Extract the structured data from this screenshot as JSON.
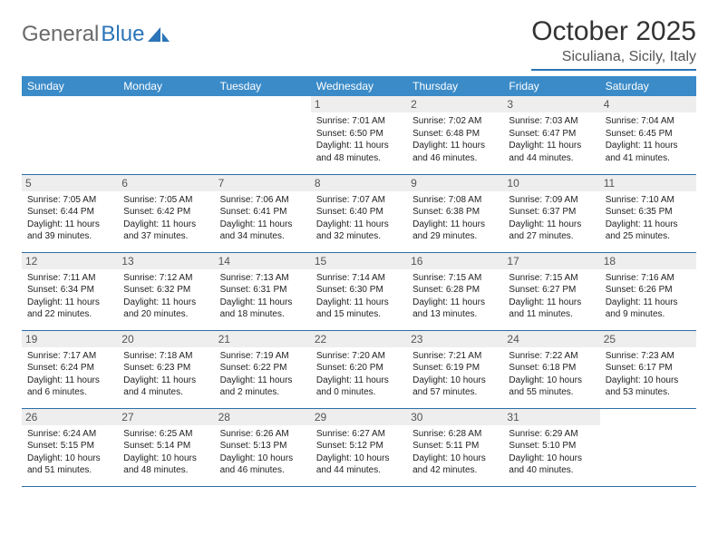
{
  "logo": {
    "part1": "General",
    "part2": "Blue"
  },
  "title": "October 2025",
  "location": "Siculiana, Sicily, Italy",
  "colors": {
    "header_bg": "#3b8bc8",
    "header_text": "#ffffff",
    "daynum_bg": "#eeeeee",
    "border": "#2b6fa8",
    "logo_gray": "#6a6a6a",
    "logo_blue": "#2b74b8"
  },
  "fonts": {
    "title_size": 30,
    "location_size": 16,
    "th_size": 12,
    "daynum_size": 12,
    "cell_size": 10
  },
  "days_of_week": [
    "Sunday",
    "Monday",
    "Tuesday",
    "Wednesday",
    "Thursday",
    "Friday",
    "Saturday"
  ],
  "weeks": [
    [
      {
        "n": "",
        "sr": "",
        "ss": "",
        "dl": ""
      },
      {
        "n": "",
        "sr": "",
        "ss": "",
        "dl": ""
      },
      {
        "n": "",
        "sr": "",
        "ss": "",
        "dl": ""
      },
      {
        "n": "1",
        "sr": "Sunrise: 7:01 AM",
        "ss": "Sunset: 6:50 PM",
        "dl": "Daylight: 11 hours and 48 minutes."
      },
      {
        "n": "2",
        "sr": "Sunrise: 7:02 AM",
        "ss": "Sunset: 6:48 PM",
        "dl": "Daylight: 11 hours and 46 minutes."
      },
      {
        "n": "3",
        "sr": "Sunrise: 7:03 AM",
        "ss": "Sunset: 6:47 PM",
        "dl": "Daylight: 11 hours and 44 minutes."
      },
      {
        "n": "4",
        "sr": "Sunrise: 7:04 AM",
        "ss": "Sunset: 6:45 PM",
        "dl": "Daylight: 11 hours and 41 minutes."
      }
    ],
    [
      {
        "n": "5",
        "sr": "Sunrise: 7:05 AM",
        "ss": "Sunset: 6:44 PM",
        "dl": "Daylight: 11 hours and 39 minutes."
      },
      {
        "n": "6",
        "sr": "Sunrise: 7:05 AM",
        "ss": "Sunset: 6:42 PM",
        "dl": "Daylight: 11 hours and 37 minutes."
      },
      {
        "n": "7",
        "sr": "Sunrise: 7:06 AM",
        "ss": "Sunset: 6:41 PM",
        "dl": "Daylight: 11 hours and 34 minutes."
      },
      {
        "n": "8",
        "sr": "Sunrise: 7:07 AM",
        "ss": "Sunset: 6:40 PM",
        "dl": "Daylight: 11 hours and 32 minutes."
      },
      {
        "n": "9",
        "sr": "Sunrise: 7:08 AM",
        "ss": "Sunset: 6:38 PM",
        "dl": "Daylight: 11 hours and 29 minutes."
      },
      {
        "n": "10",
        "sr": "Sunrise: 7:09 AM",
        "ss": "Sunset: 6:37 PM",
        "dl": "Daylight: 11 hours and 27 minutes."
      },
      {
        "n": "11",
        "sr": "Sunrise: 7:10 AM",
        "ss": "Sunset: 6:35 PM",
        "dl": "Daylight: 11 hours and 25 minutes."
      }
    ],
    [
      {
        "n": "12",
        "sr": "Sunrise: 7:11 AM",
        "ss": "Sunset: 6:34 PM",
        "dl": "Daylight: 11 hours and 22 minutes."
      },
      {
        "n": "13",
        "sr": "Sunrise: 7:12 AM",
        "ss": "Sunset: 6:32 PM",
        "dl": "Daylight: 11 hours and 20 minutes."
      },
      {
        "n": "14",
        "sr": "Sunrise: 7:13 AM",
        "ss": "Sunset: 6:31 PM",
        "dl": "Daylight: 11 hours and 18 minutes."
      },
      {
        "n": "15",
        "sr": "Sunrise: 7:14 AM",
        "ss": "Sunset: 6:30 PM",
        "dl": "Daylight: 11 hours and 15 minutes."
      },
      {
        "n": "16",
        "sr": "Sunrise: 7:15 AM",
        "ss": "Sunset: 6:28 PM",
        "dl": "Daylight: 11 hours and 13 minutes."
      },
      {
        "n": "17",
        "sr": "Sunrise: 7:15 AM",
        "ss": "Sunset: 6:27 PM",
        "dl": "Daylight: 11 hours and 11 minutes."
      },
      {
        "n": "18",
        "sr": "Sunrise: 7:16 AM",
        "ss": "Sunset: 6:26 PM",
        "dl": "Daylight: 11 hours and 9 minutes."
      }
    ],
    [
      {
        "n": "19",
        "sr": "Sunrise: 7:17 AM",
        "ss": "Sunset: 6:24 PM",
        "dl": "Daylight: 11 hours and 6 minutes."
      },
      {
        "n": "20",
        "sr": "Sunrise: 7:18 AM",
        "ss": "Sunset: 6:23 PM",
        "dl": "Daylight: 11 hours and 4 minutes."
      },
      {
        "n": "21",
        "sr": "Sunrise: 7:19 AM",
        "ss": "Sunset: 6:22 PM",
        "dl": "Daylight: 11 hours and 2 minutes."
      },
      {
        "n": "22",
        "sr": "Sunrise: 7:20 AM",
        "ss": "Sunset: 6:20 PM",
        "dl": "Daylight: 11 hours and 0 minutes."
      },
      {
        "n": "23",
        "sr": "Sunrise: 7:21 AM",
        "ss": "Sunset: 6:19 PM",
        "dl": "Daylight: 10 hours and 57 minutes."
      },
      {
        "n": "24",
        "sr": "Sunrise: 7:22 AM",
        "ss": "Sunset: 6:18 PM",
        "dl": "Daylight: 10 hours and 55 minutes."
      },
      {
        "n": "25",
        "sr": "Sunrise: 7:23 AM",
        "ss": "Sunset: 6:17 PM",
        "dl": "Daylight: 10 hours and 53 minutes."
      }
    ],
    [
      {
        "n": "26",
        "sr": "Sunrise: 6:24 AM",
        "ss": "Sunset: 5:15 PM",
        "dl": "Daylight: 10 hours and 51 minutes."
      },
      {
        "n": "27",
        "sr": "Sunrise: 6:25 AM",
        "ss": "Sunset: 5:14 PM",
        "dl": "Daylight: 10 hours and 48 minutes."
      },
      {
        "n": "28",
        "sr": "Sunrise: 6:26 AM",
        "ss": "Sunset: 5:13 PM",
        "dl": "Daylight: 10 hours and 46 minutes."
      },
      {
        "n": "29",
        "sr": "Sunrise: 6:27 AM",
        "ss": "Sunset: 5:12 PM",
        "dl": "Daylight: 10 hours and 44 minutes."
      },
      {
        "n": "30",
        "sr": "Sunrise: 6:28 AM",
        "ss": "Sunset: 5:11 PM",
        "dl": "Daylight: 10 hours and 42 minutes."
      },
      {
        "n": "31",
        "sr": "Sunrise: 6:29 AM",
        "ss": "Sunset: 5:10 PM",
        "dl": "Daylight: 10 hours and 40 minutes."
      },
      {
        "n": "",
        "sr": "",
        "ss": "",
        "dl": ""
      }
    ]
  ]
}
